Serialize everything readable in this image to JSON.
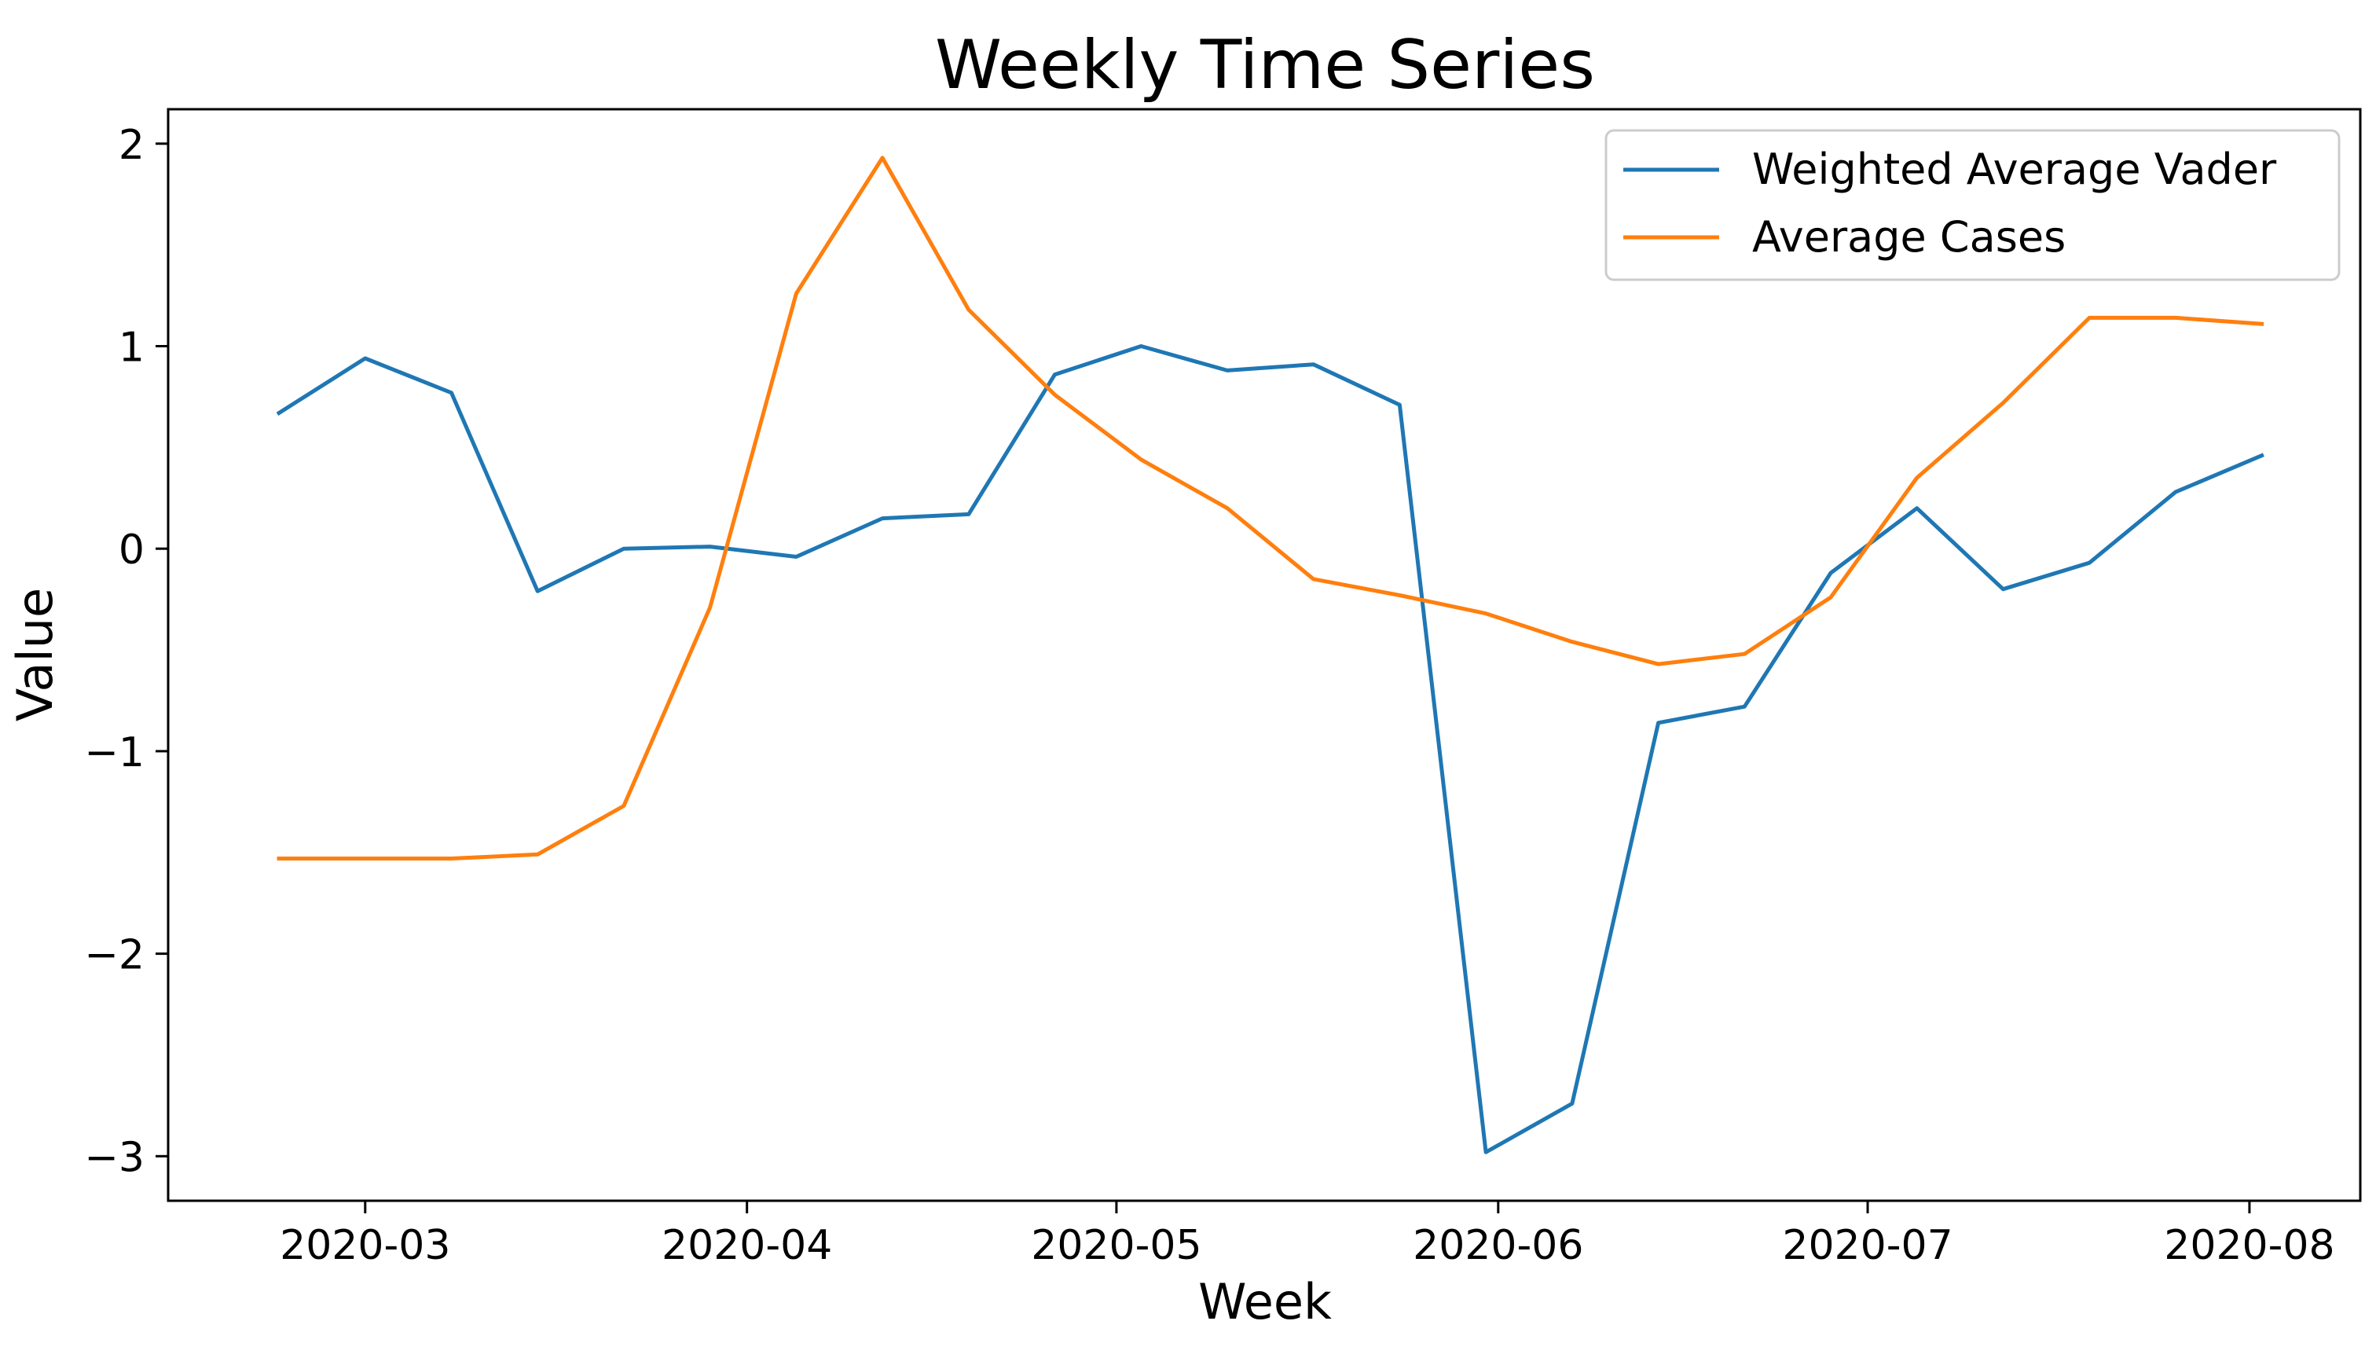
{
  "chart_data": {
    "type": "line",
    "title": "Weekly Time Series",
    "xlabel": "Week",
    "ylabel": "Value",
    "x": [
      "2020-02-23",
      "2020-03-01",
      "2020-03-08",
      "2020-03-15",
      "2020-03-22",
      "2020-03-29",
      "2020-04-05",
      "2020-04-12",
      "2020-04-19",
      "2020-04-26",
      "2020-05-03",
      "2020-05-10",
      "2020-05-17",
      "2020-05-24",
      "2020-05-31",
      "2020-06-07",
      "2020-06-14",
      "2020-06-21",
      "2020-06-28",
      "2020-07-05",
      "2020-07-12",
      "2020-07-19",
      "2020-07-26",
      "2020-08-02"
    ],
    "x_ticks": [
      "2020-03-01",
      "2020-04-01",
      "2020-05-01",
      "2020-06-01",
      "2020-07-01",
      "2020-08-01"
    ],
    "x_tick_labels": [
      "2020-03",
      "2020-04",
      "2020-05",
      "2020-06",
      "2020-07",
      "2020-08"
    ],
    "xlim": [
      "2020-02-14",
      "2020-08-10"
    ],
    "ylim": [
      -3.22,
      2.17
    ],
    "y_ticks": [
      2,
      1,
      0,
      -1,
      -2,
      -3
    ],
    "y_tick_labels": [
      "2",
      "1",
      "0",
      "−1",
      "−2",
      "−3"
    ],
    "grid": false,
    "legend_position": "top-right",
    "series": [
      {
        "name": "Weighted Average Vader",
        "color": "#1f77b4",
        "values": [
          0.67,
          0.94,
          0.77,
          -0.21,
          0.0,
          0.01,
          -0.04,
          0.15,
          0.17,
          0.86,
          1.0,
          0.88,
          0.91,
          0.71,
          -2.98,
          -2.74,
          -0.86,
          -0.78,
          -0.12,
          0.2,
          -0.2,
          -0.07,
          0.28,
          0.46
        ]
      },
      {
        "name": "Average Cases",
        "color": "#ff7f0e",
        "values": [
          -1.53,
          -1.53,
          -1.53,
          -1.51,
          -1.27,
          -0.29,
          1.26,
          1.93,
          1.18,
          0.76,
          0.44,
          0.2,
          -0.15,
          -0.23,
          -0.32,
          -0.46,
          -0.57,
          -0.52,
          -0.24,
          0.35,
          0.72,
          1.14,
          1.14,
          1.11
        ]
      }
    ]
  }
}
